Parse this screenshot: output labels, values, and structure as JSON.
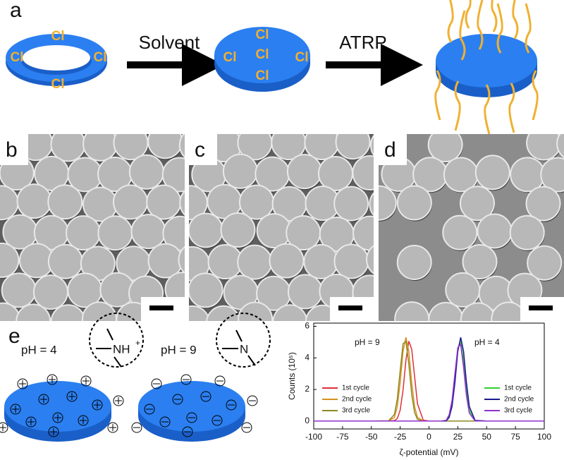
{
  "panels": {
    "a": {
      "label": "a",
      "ring_labels": [
        "Cl",
        "Cl",
        "Cl",
        "Cl"
      ],
      "step1": "Solvent",
      "disk_labels": [
        "Cl",
        "Cl",
        "Cl",
        "Cl",
        "Cl"
      ],
      "step2": "ATRP"
    },
    "b": {
      "label": "b"
    },
    "c": {
      "label": "c"
    },
    "d": {
      "label": "d"
    },
    "e": {
      "label": "e",
      "ph_acid": "pH = 4",
      "ph_base": "pH = 9",
      "amine_protonated": "NH",
      "charge": "+",
      "amine": "N"
    }
  },
  "chart_data": {
    "type": "line",
    "xlabel": "ζ-potential (mV)",
    "ylabel": "Counts (10⁵)",
    "annotations": [
      "pH = 9",
      "pH = 4"
    ],
    "x": [
      -100,
      -50,
      -35,
      -30,
      -27.5,
      -25,
      -22.5,
      -20,
      -17.5,
      -15,
      -12.5,
      -10,
      -5,
      0,
      10,
      15,
      17.5,
      20,
      22.5,
      25,
      27.5,
      30,
      32.5,
      35,
      40,
      50,
      100
    ],
    "series": [
      {
        "name": "1st cycle",
        "color": "#e0303a",
        "values": [
          0,
          0,
          0,
          0.03,
          0.16,
          0.69,
          1.97,
          3.86,
          5.06,
          4.55,
          2.83,
          1.1,
          0.06,
          0,
          0,
          0,
          0,
          0,
          0,
          0,
          0,
          0,
          0,
          0,
          0,
          0,
          0
        ]
      },
      {
        "name": "2nd cycle",
        "color": "#d89020",
        "values": [
          0,
          0,
          0,
          0.23,
          0.92,
          2.43,
          4.41,
          5.3,
          4.41,
          2.43,
          0.92,
          0.23,
          0.01,
          0,
          0,
          0,
          0,
          0,
          0,
          0,
          0,
          0,
          0,
          0,
          0,
          0,
          0
        ]
      },
      {
        "name": "3rd cycle",
        "color": "#8a8a20",
        "values": [
          0,
          0,
          0.02,
          0.42,
          1.4,
          3.2,
          4.9,
          5.05,
          3.6,
          1.7,
          0.54,
          0.11,
          0,
          0,
          0,
          0,
          0,
          0,
          0,
          0,
          0,
          0,
          0,
          0,
          0,
          0,
          0
        ]
      },
      {
        "name": "1st cycle",
        "color": "#30d030",
        "values": [
          0,
          0,
          0,
          0,
          0,
          0,
          0,
          0,
          0,
          0,
          0,
          0,
          0,
          0,
          0,
          0.05,
          0.3,
          1.1,
          2.8,
          4.6,
          5.06,
          3.85,
          1.96,
          0.69,
          0.03,
          0,
          0
        ]
      },
      {
        "name": "2nd cycle",
        "color": "#1a1a90",
        "values": [
          0,
          0,
          0,
          0,
          0,
          0,
          0,
          0,
          0,
          0,
          0,
          0,
          0,
          0,
          0,
          0.01,
          0.23,
          0.92,
          2.43,
          4.41,
          5.3,
          4.41,
          2.43,
          0.92,
          0.04,
          0,
          0
        ]
      },
      {
        "name": "3rd cycle",
        "color": "#9030d0",
        "values": [
          0,
          0,
          0,
          0,
          0,
          0,
          0,
          0,
          0,
          0,
          0,
          0,
          0,
          0,
          0,
          0.05,
          0.4,
          1.3,
          3.0,
          4.65,
          4.85,
          3.4,
          1.6,
          0.5,
          0.01,
          0,
          0
        ]
      }
    ],
    "xlim": [
      -100,
      100
    ],
    "xticks": [
      -100,
      -75,
      -50,
      -25,
      0,
      25,
      50,
      75,
      100
    ],
    "ylim": [
      -0.5,
      6.2
    ],
    "yticks": [
      0,
      2,
      4,
      6
    ]
  }
}
